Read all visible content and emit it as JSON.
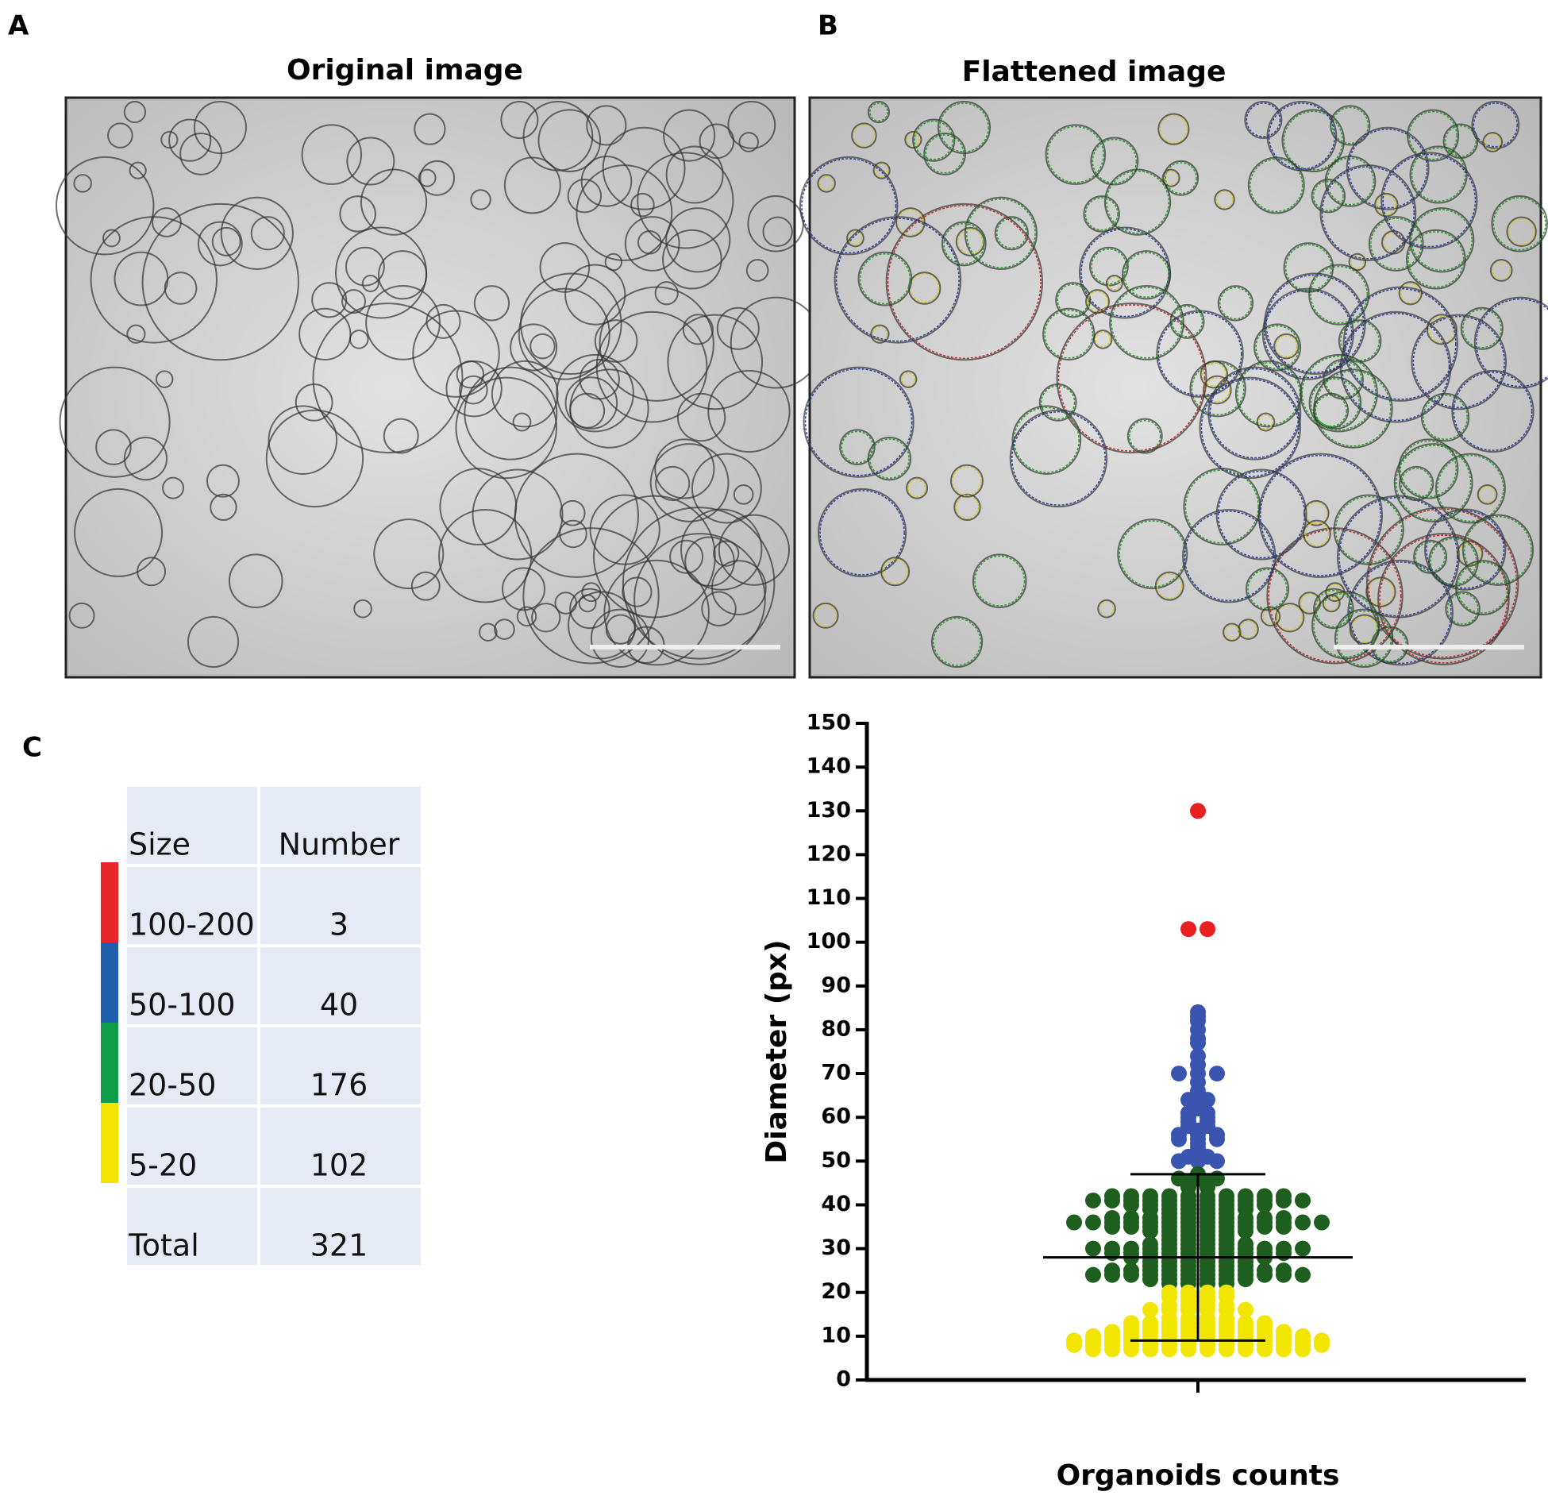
{
  "panels": [
    {
      "label": "A",
      "title": "Original image"
    },
    {
      "label": "B",
      "title": "Flattened image"
    }
  ],
  "table": {
    "label": "C",
    "header": [
      "Size",
      "Number"
    ],
    "rows": [
      [
        "100-200",
        3
      ],
      [
        "50-100",
        40
      ],
      [
        "20-50",
        176
      ],
      [
        "5-20",
        102
      ],
      [
        "Total",
        321
      ]
    ],
    "colors": [
      "#e8262a",
      "#1f5fae",
      "#0f9d4a",
      "#f5e400"
    ]
  },
  "chart_data": {
    "type": "beeswarm",
    "ylabel": "Diameter (px)",
    "xlabel": "Organoids counts",
    "ylim": [
      0,
      150
    ],
    "yticks": [
      0,
      10,
      20,
      30,
      40,
      50,
      60,
      70,
      80,
      90,
      100,
      110,
      120,
      130,
      140,
      150
    ],
    "mean": 28,
    "sd": 19,
    "series": [
      {
        "color": "#e82020",
        "values": [
          130,
          103,
          103
        ]
      },
      {
        "color": "#3a55b0",
        "values": [
          84,
          83,
          82,
          80,
          78,
          77,
          74,
          72,
          70,
          70,
          70,
          68,
          66,
          64,
          64,
          63,
          62,
          61,
          61,
          60,
          60,
          59,
          59,
          58,
          58,
          57,
          56,
          56,
          56,
          55,
          55,
          55,
          54,
          53,
          52,
          51,
          51,
          50,
          50,
          50
        ]
      },
      {
        "color": "#1e5e1e",
        "values": [
          47,
          46,
          46,
          46,
          45,
          45,
          44,
          44,
          42,
          42,
          42,
          42,
          42,
          42,
          42,
          42,
          42,
          42,
          41,
          41,
          41,
          41,
          41,
          41,
          41,
          41,
          41,
          41,
          41,
          41,
          40,
          40,
          40,
          40,
          40,
          40,
          40,
          40,
          39,
          39,
          39,
          39,
          39,
          39,
          38,
          38,
          38,
          38,
          37,
          37,
          37,
          37,
          37,
          37,
          37,
          37,
          37,
          37,
          36,
          36,
          36,
          36,
          36,
          36,
          36,
          36,
          36,
          36,
          36,
          36,
          36,
          36,
          35,
          35,
          35,
          35,
          35,
          35,
          35,
          35,
          35,
          35,
          34,
          34,
          34,
          34,
          34,
          34,
          33,
          33,
          33,
          33,
          32,
          32,
          32,
          32,
          31,
          31,
          31,
          31,
          31,
          31,
          30,
          30,
          30,
          30,
          30,
          30,
          30,
          30,
          30,
          30,
          30,
          30,
          29,
          29,
          29,
          29,
          29,
          29,
          29,
          29,
          29,
          29,
          28,
          28,
          28,
          28,
          28,
          28,
          28,
          28,
          27,
          27,
          27,
          27,
          27,
          27,
          26,
          26,
          26,
          26,
          26,
          26,
          25,
          25,
          25,
          25,
          25,
          25,
          25,
          25,
          25,
          25,
          24,
          24,
          24,
          24,
          24,
          24,
          24,
          24,
          24,
          24,
          24,
          24,
          23,
          23,
          23,
          23,
          23,
          23,
          22,
          22,
          22,
          22
        ]
      },
      {
        "color": "#f2e500",
        "values": [
          20,
          20,
          20,
          20,
          19,
          19,
          19,
          19,
          18,
          18,
          17,
          17,
          17,
          17,
          16,
          16,
          16,
          16,
          16,
          16,
          14,
          14,
          14,
          14,
          13,
          13,
          13,
          13,
          13,
          13,
          13,
          13,
          12,
          12,
          12,
          12,
          12,
          12,
          12,
          12,
          11,
          11,
          11,
          11,
          11,
          11,
          11,
          11,
          11,
          11,
          10,
          10,
          10,
          10,
          10,
          10,
          10,
          10,
          10,
          10,
          10,
          10,
          9,
          9,
          9,
          9,
          9,
          9,
          9,
          9,
          9,
          9,
          9,
          9,
          9,
          9,
          8,
          8,
          8,
          8,
          8,
          8,
          8,
          8,
          8,
          8,
          8,
          8,
          8,
          8,
          7,
          7,
          7,
          7,
          7,
          7,
          7,
          7,
          7,
          7,
          7,
          7
        ]
      }
    ]
  }
}
